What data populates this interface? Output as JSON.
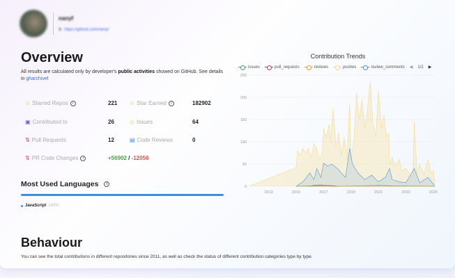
{
  "profile": {
    "name": "nanyf",
    "link": "https://github.com/nanyf"
  },
  "overview": {
    "title": "Overview",
    "desc_pre": "All results are calculated only by developer's ",
    "desc_bold": "public activities",
    "desc_mid": " showed on GitHub. See details in ",
    "desc_link": "gharchive",
    "desc_end": "!",
    "stats": [
      {
        "label": "Starred Repos",
        "value": "221",
        "icon": "star-icon",
        "info": true
      },
      {
        "label": "Star Earned",
        "value": "182902",
        "icon": "star-icon",
        "info": true
      },
      {
        "label": "Contributed to",
        "value": "26",
        "icon": "repo-icon"
      },
      {
        "label": "Issues",
        "value": "64",
        "icon": "issue-icon"
      },
      {
        "label": "Pull Requests",
        "value": "12",
        "icon": "pull-request-icon"
      },
      {
        "label": "Code Reviews",
        "value": "0",
        "icon": "code-review-icon"
      },
      {
        "label": "PR Code Changes",
        "value_add": "+56902",
        "sep": "/",
        "value_del": "-12056",
        "icon": "pull-request-icon",
        "info": true
      }
    ],
    "languages_title": "Most Used Languages",
    "languages": [
      {
        "name": "JavaScript",
        "percent": "100%",
        "color": "#3b8fe0"
      }
    ]
  },
  "behaviour": {
    "title": "Behaviour",
    "desc": "You can see the total contributions in different repositories since 2011, as well as check the status of different contribution categories type by type."
  },
  "chart_data": {
    "type": "area",
    "title": "Contribution Trends",
    "legend_position": "top",
    "legend_page": "1/2",
    "xlim": [
      2011.6,
      2025.15
    ],
    "ylim": [
      0,
      250
    ],
    "yticks": [
      0,
      50,
      100,
      150,
      200,
      250
    ],
    "xticks": [
      2013,
      2015,
      2017,
      2019,
      2021,
      2023,
      2025
    ],
    "grid": true,
    "series": [
      {
        "name": "issues",
        "color": "#3ba272",
        "points": [
          [
            2015.0,
            0
          ],
          [
            2016,
            1
          ],
          [
            2018,
            0
          ],
          [
            2020,
            1
          ],
          [
            2021,
            2
          ],
          [
            2022,
            1
          ],
          [
            2025.1,
            0
          ]
        ]
      },
      {
        "name": "pull_requests",
        "color": "#b03a6a",
        "points": [
          [
            2016.0,
            0
          ],
          [
            2016.3,
            2
          ],
          [
            2016.8,
            3
          ],
          [
            2017.2,
            2
          ],
          [
            2017.8,
            1
          ],
          [
            2018.0,
            0
          ]
        ]
      },
      {
        "name": "reviews",
        "color": "#e3a43c",
        "points": [
          [
            2015.0,
            0
          ],
          [
            2025.1,
            0
          ]
        ]
      },
      {
        "name": "pushes",
        "color": "#f6d98a",
        "points": [
          [
            2011.6,
            0
          ],
          [
            2015.0,
            42
          ],
          [
            2015.1,
            80
          ],
          [
            2015.3,
            70
          ],
          [
            2015.5,
            85
          ],
          [
            2015.7,
            75
          ],
          [
            2015.9,
            85
          ],
          [
            2016.1,
            65
          ],
          [
            2016.3,
            95
          ],
          [
            2016.5,
            85
          ],
          [
            2016.7,
            60
          ],
          [
            2016.9,
            75
          ],
          [
            2017.0,
            130
          ],
          [
            2017.2,
            110
          ],
          [
            2017.4,
            140
          ],
          [
            2017.5,
            100
          ],
          [
            2017.7,
            175
          ],
          [
            2017.9,
            90
          ],
          [
            2018.1,
            120
          ],
          [
            2018.3,
            70
          ],
          [
            2018.5,
            110
          ],
          [
            2018.7,
            60
          ],
          [
            2018.9,
            185
          ],
          [
            2019.0,
            60
          ],
          [
            2019.2,
            100
          ],
          [
            2019.4,
            210
          ],
          [
            2019.6,
            150
          ],
          [
            2019.8,
            195
          ],
          [
            2020.0,
            130
          ],
          [
            2020.2,
            175
          ],
          [
            2020.4,
            235
          ],
          [
            2020.6,
            140
          ],
          [
            2020.8,
            110
          ],
          [
            2021.0,
            215
          ],
          [
            2021.2,
            130
          ],
          [
            2021.4,
            160
          ],
          [
            2021.6,
            110
          ],
          [
            2021.75,
            120
          ],
          [
            2021.8,
            50
          ],
          [
            2022.0,
            65
          ],
          [
            2022.2,
            45
          ],
          [
            2022.5,
            60
          ],
          [
            2022.7,
            35
          ],
          [
            2023.0,
            40
          ],
          [
            2023.2,
            30
          ],
          [
            2023.5,
            20
          ],
          [
            2023.6,
            145
          ],
          [
            2023.8,
            30
          ],
          [
            2024.0,
            50
          ],
          [
            2024.3,
            25
          ],
          [
            2024.6,
            60
          ],
          [
            2024.8,
            30
          ],
          [
            2025.0,
            35
          ],
          [
            2025.1,
            5
          ]
        ]
      },
      {
        "name": "review_comments",
        "color": "#4a8fd6",
        "points": [
          [
            2015.0,
            0
          ],
          [
            2015.5,
            10
          ],
          [
            2016.0,
            30
          ],
          [
            2016.3,
            15
          ],
          [
            2016.5,
            40
          ],
          [
            2016.8,
            20
          ],
          [
            2017.0,
            52
          ],
          [
            2017.3,
            45
          ],
          [
            2017.6,
            50
          ],
          [
            2018.0,
            40
          ],
          [
            2018.3,
            30
          ],
          [
            2018.6,
            20
          ],
          [
            2018.9,
            85
          ],
          [
            2019.1,
            50
          ],
          [
            2019.5,
            30
          ],
          [
            2020.0,
            15
          ],
          [
            2020.5,
            25
          ],
          [
            2021.0,
            10
          ],
          [
            2021.5,
            20
          ],
          [
            2021.8,
            40
          ],
          [
            2022.0,
            15
          ],
          [
            2022.5,
            10
          ],
          [
            2023.0,
            8
          ],
          [
            2023.6,
            40
          ],
          [
            2024.0,
            8
          ],
          [
            2024.6,
            20
          ],
          [
            2025.0,
            5
          ],
          [
            2025.1,
            0
          ]
        ]
      }
    ]
  }
}
